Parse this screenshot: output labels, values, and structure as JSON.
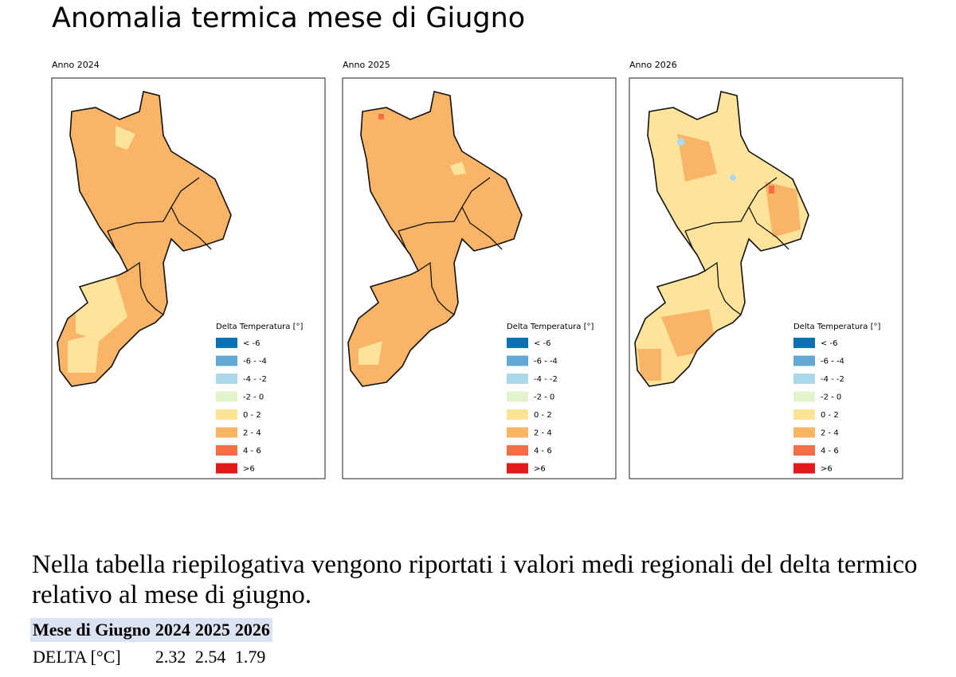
{
  "title": "Anomalia termica mese di Giugno",
  "panels": [
    {
      "label": "Anno 2024"
    },
    {
      "label": "Anno 2025"
    },
    {
      "label": "Anno 2026"
    }
  ],
  "legend": {
    "title": "Delta Temperatura [°]",
    "items": [
      {
        "label": "< -6",
        "color": "#0a71b4"
      },
      {
        "label": "-6 - -4",
        "color": "#62a8d4"
      },
      {
        "label": "-4 - -2",
        "color": "#abd9e9"
      },
      {
        "label": "-2 - 0",
        "color": "#e0f3cc"
      },
      {
        "label": "0 - 2",
        "color": "#fee396"
      },
      {
        "label": "2 - 4",
        "color": "#fdb462"
      },
      {
        "label": "4 - 6",
        "color": "#f46d43"
      },
      {
        "label": ">6",
        "color": "#e31a1c"
      }
    ]
  },
  "text": "Nella tabella riepilogativa vengono riportati i valori medi regionali del delta termico relativo al mese di giugno.",
  "table": {
    "header": [
      "Mese di Giugno",
      "2024",
      "2025",
      "2026"
    ],
    "rows": [
      [
        "DELTA [°C]",
        2.32,
        2.54,
        1.79
      ]
    ]
  }
}
